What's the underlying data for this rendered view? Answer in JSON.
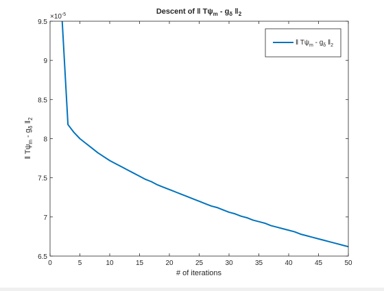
{
  "chart_data": {
    "type": "line",
    "title": "Descent of ‖ Tψm - gδ ‖2",
    "title_parts": {
      "lead": "Descent of ‖ Tψ",
      "sub1": "m",
      "mid": " - g",
      "sub2": "δ",
      "bars": " ‖",
      "sub3": "2"
    },
    "xlabel": "# of iterations",
    "ylabel": "‖ Tψm - gδ ‖2",
    "ylabel_parts": {
      "lead": "‖ Tψ",
      "sub1": "m",
      "mid": " - g",
      "sub2": "δ",
      "bars": " ‖",
      "sub3": "2"
    },
    "y_exponent_label": "×10",
    "y_exponent": "-5",
    "xlim": [
      0,
      50
    ],
    "ylim": [
      6.5,
      9.5
    ],
    "x_ticks": [
      0,
      5,
      10,
      15,
      20,
      25,
      30,
      35,
      40,
      45,
      50
    ],
    "x_tick_labels": [
      "0",
      "5",
      "10",
      "15",
      "20",
      "25",
      "30",
      "35",
      "40",
      "45",
      "50"
    ],
    "y_ticks": [
      6.5,
      7,
      7.5,
      8,
      8.5,
      9,
      9.5
    ],
    "y_tick_labels": [
      "6.5",
      "7",
      "7.5",
      "8",
      "8.5",
      "9",
      "9.5"
    ],
    "grid": false,
    "legend_position": "top-right",
    "series": [
      {
        "name": "‖ Tψm - gδ ‖2",
        "name_parts": {
          "lead": "‖ Tψ",
          "sub1": "m",
          "mid": " - g",
          "sub2": "δ",
          "bars": " ‖",
          "sub3": "2"
        },
        "color": "#0072bd",
        "x": [
          2,
          3,
          4,
          5,
          6,
          7,
          8,
          9,
          10,
          11,
          12,
          13,
          14,
          15,
          16,
          17,
          18,
          19,
          20,
          21,
          22,
          23,
          24,
          25,
          26,
          27,
          28,
          29,
          30,
          31,
          32,
          33,
          34,
          35,
          36,
          37,
          38,
          39,
          40,
          41,
          42,
          43,
          44,
          45,
          46,
          47,
          48,
          49,
          50
        ],
        "y": [
          9.55,
          8.18,
          8.08,
          8.0,
          7.94,
          7.88,
          7.82,
          7.77,
          7.72,
          7.68,
          7.64,
          7.6,
          7.56,
          7.52,
          7.48,
          7.45,
          7.41,
          7.38,
          7.35,
          7.32,
          7.29,
          7.26,
          7.23,
          7.2,
          7.17,
          7.14,
          7.12,
          7.09,
          7.06,
          7.04,
          7.01,
          6.99,
          6.96,
          6.94,
          6.92,
          6.89,
          6.87,
          6.85,
          6.83,
          6.81,
          6.78,
          6.76,
          6.74,
          6.72,
          6.7,
          6.68,
          6.66,
          6.64,
          6.62
        ]
      }
    ]
  }
}
